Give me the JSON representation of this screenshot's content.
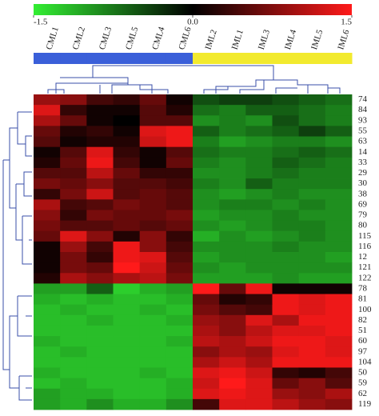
{
  "chart_data": {
    "type": "heatmap",
    "x_categories": [
      "CML1",
      "CML2",
      "CML3",
      "CML5",
      "CML4",
      "CML6",
      "IML2",
      "IML1",
      "IML3",
      "IML4",
      "IML5",
      "IML6"
    ],
    "column_colors": [
      "#3a5fd9",
      "#3a5fd9",
      "#3a5fd9",
      "#3a5fd9",
      "#3a5fd9",
      "#3a5fd9",
      "#f2ea2e",
      "#f2ea2e",
      "#f2ea2e",
      "#f2ea2e",
      "#f2ea2e",
      "#f2ea2e"
    ],
    "y_categories": [
      "74",
      "84",
      "93",
      "55",
      "63",
      "14",
      "33",
      "29",
      "30",
      "38",
      "69",
      "79",
      "80",
      "115",
      "116",
      "12",
      "121",
      "122",
      "78",
      "81",
      "100",
      "82",
      "51",
      "60",
      "97",
      "104",
      "50",
      "59",
      "62",
      "119"
    ],
    "clim": [
      -1.5,
      1.5
    ],
    "cticks": [
      -1.5,
      {
        "value": 0,
        "label": "0.0"
      },
      1.5
    ],
    "colormap": [
      "#33ee33",
      "#000000",
      "#ff1a1a"
    ],
    "values": [
      [
        0.9,
        0.8,
        0.4,
        0.3,
        0.6,
        0.1,
        -0.5,
        -0.4,
        -0.4,
        -0.5,
        -0.6,
        -0.7
      ],
      [
        1.3,
        0.3,
        0.1,
        0.1,
        0.5,
        0.2,
        -0.7,
        -0.8,
        -0.6,
        -0.6,
        -0.7,
        -0.8
      ],
      [
        1.0,
        0.6,
        0.1,
        0.0,
        0.5,
        0.5,
        -0.9,
        -0.8,
        -0.9,
        -0.5,
        -0.7,
        -0.8
      ],
      [
        0.6,
        0.2,
        0.3,
        0.1,
        1.3,
        1.4,
        -0.6,
        -0.8,
        -0.7,
        -0.6,
        -0.4,
        -0.6
      ],
      [
        0.5,
        0.1,
        0.2,
        0.2,
        1.2,
        1.4,
        -0.8,
        -1.0,
        -0.9,
        -0.8,
        -0.8,
        -0.9
      ],
      [
        0.1,
        0.5,
        1.3,
        0.3,
        0.1,
        0.5,
        -0.7,
        -0.8,
        -0.8,
        -0.7,
        -0.6,
        -0.7
      ],
      [
        0.2,
        0.6,
        1.4,
        0.4,
        0.1,
        0.6,
        -0.8,
        -0.9,
        -0.8,
        -0.6,
        -0.7,
        -0.8
      ],
      [
        0.5,
        0.5,
        1.1,
        0.6,
        0.3,
        0.3,
        -0.9,
        -0.9,
        -0.8,
        -0.7,
        -0.8,
        -0.8
      ],
      [
        0.7,
        0.6,
        0.8,
        0.5,
        0.5,
        0.4,
        -0.8,
        -0.9,
        -0.6,
        -0.8,
        -0.8,
        -0.8
      ],
      [
        0.3,
        0.7,
        1.2,
        0.5,
        0.6,
        0.5,
        -0.9,
        -1.0,
        -0.9,
        -0.8,
        -0.9,
        -0.9
      ],
      [
        1.0,
        0.4,
        0.5,
        0.7,
        0.6,
        0.5,
        -0.9,
        -0.8,
        -0.8,
        -0.9,
        -0.8,
        -0.9
      ],
      [
        0.8,
        0.3,
        0.7,
        0.6,
        0.6,
        0.7,
        -1.0,
        -0.9,
        -0.9,
        -0.8,
        -0.9,
        -0.9
      ],
      [
        0.7,
        0.5,
        0.5,
        0.6,
        0.5,
        0.6,
        -0.9,
        -1.0,
        -0.9,
        -0.8,
        -0.8,
        -0.9
      ],
      [
        0.6,
        1.3,
        0.8,
        0.2,
        0.8,
        0.3,
        -1.1,
        -0.9,
        -1.0,
        -0.9,
        -0.8,
        -0.9
      ],
      [
        0.1,
        0.9,
        0.4,
        1.4,
        0.8,
        0.4,
        -0.9,
        -0.9,
        -0.9,
        -0.8,
        -0.9,
        -0.9
      ],
      [
        0.1,
        0.7,
        0.3,
        1.4,
        1.3,
        0.5,
        -1.0,
        -0.9,
        -0.9,
        -0.9,
        -0.9,
        -1.0
      ],
      [
        0.1,
        0.7,
        0.6,
        1.5,
        1.2,
        0.6,
        -0.9,
        -1.0,
        -0.9,
        -0.9,
        -0.9,
        -0.9
      ],
      [
        0.2,
        1.0,
        0.8,
        1.0,
        1.1,
        0.7,
        -1.0,
        -1.0,
        -1.0,
        -0.9,
        -1.0,
        -1.0
      ],
      [
        -1.0,
        -1.0,
        -0.6,
        -1.3,
        -1.1,
        -1.0,
        1.5,
        0.6,
        1.4,
        0.1,
        0.1,
        0.1
      ],
      [
        -1.1,
        -1.2,
        -1.1,
        -1.2,
        -1.2,
        -1.1,
        0.6,
        0.2,
        0.3,
        1.4,
        1.3,
        1.4
      ],
      [
        -1.2,
        -1.1,
        -1.2,
        -1.2,
        -1.1,
        -1.2,
        0.7,
        0.5,
        0.4,
        1.4,
        1.3,
        1.4
      ],
      [
        -1.2,
        -1.2,
        -1.1,
        -1.2,
        -1.2,
        -1.1,
        0.9,
        0.8,
        1.3,
        1.0,
        1.4,
        1.4
      ],
      [
        -1.2,
        -1.2,
        -1.2,
        -1.2,
        -1.2,
        -1.2,
        1.0,
        0.8,
        1.1,
        1.3,
        1.3,
        1.4
      ],
      [
        -1.1,
        -1.2,
        -1.2,
        -1.2,
        -1.2,
        -1.1,
        1.1,
        1.0,
        1.2,
        1.4,
        1.4,
        1.3
      ],
      [
        -1.2,
        -1.1,
        -1.2,
        -1.2,
        -1.2,
        -1.2,
        0.8,
        1.0,
        0.9,
        1.3,
        1.4,
        1.3
      ],
      [
        -1.2,
        -1.2,
        -1.2,
        -1.2,
        -1.2,
        -1.2,
        1.0,
        1.2,
        1.0,
        1.4,
        1.4,
        1.4
      ],
      [
        -1.1,
        -1.2,
        -1.2,
        -1.2,
        -1.1,
        -1.2,
        1.3,
        1.4,
        1.2,
        0.3,
        0.2,
        0.4
      ],
      [
        -1.2,
        -1.1,
        -1.2,
        -1.2,
        -1.2,
        -1.1,
        1.2,
        1.5,
        1.3,
        0.6,
        0.8,
        0.5
      ],
      [
        -1.0,
        -1.1,
        -1.1,
        -1.2,
        -1.2,
        -1.1,
        1.3,
        1.4,
        1.3,
        0.9,
        0.8,
        1.0
      ],
      [
        -1.0,
        -1.1,
        -0.9,
        -1.1,
        -1.1,
        -0.9,
        0.4,
        1.3,
        1.3,
        1.1,
        0.9,
        0.8
      ]
    ]
  }
}
